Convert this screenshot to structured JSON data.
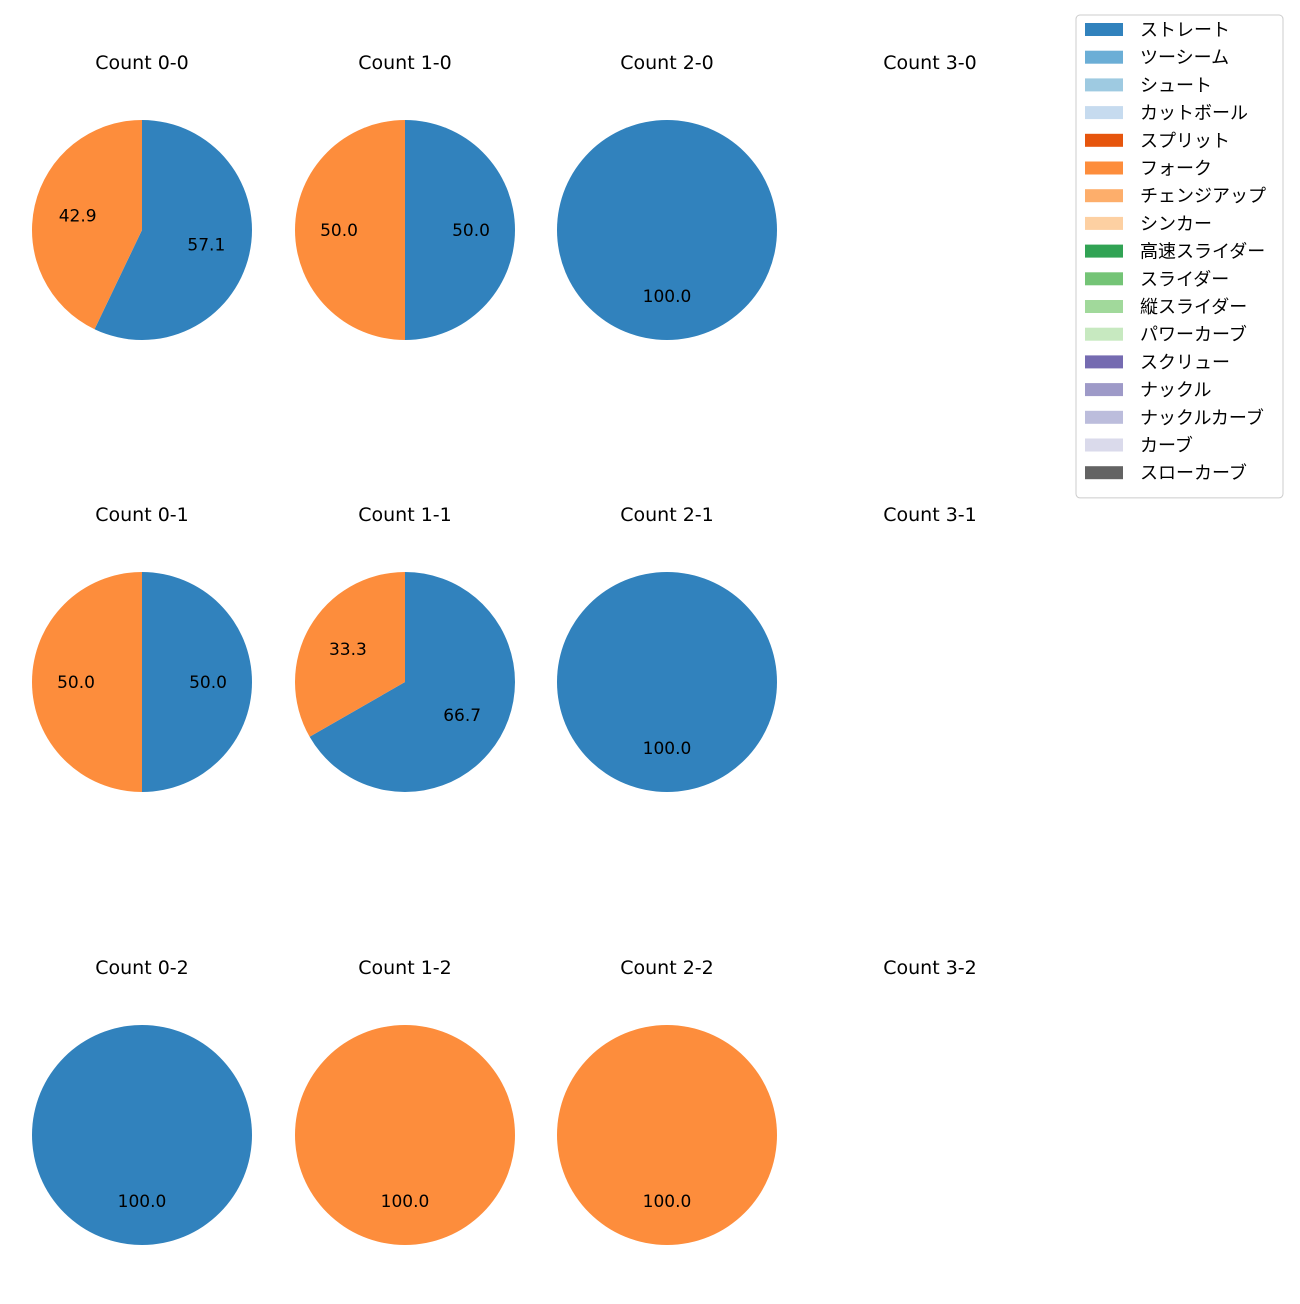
{
  "colors": {
    "ストレート": "#3182bd",
    "ツーシーム": "#6baed6",
    "シュート": "#9ecae1",
    "カットボール": "#c6dbef",
    "スプリット": "#e6550d",
    "フォーク": "#fd8d3c",
    "チェンジアップ": "#fdae6b",
    "シンカー": "#fdd0a2",
    "高速スライダー": "#31a354",
    "スライダー": "#74c476",
    "縦スライダー": "#a1d99b",
    "パワーカーブ": "#c7e9c0",
    "スクリュー": "#756bb1",
    "ナックル": "#9e9ac8",
    "ナックルカーブ": "#bcbddc",
    "カーブ": "#dadaeb",
    "スローカーブ": "#636363"
  },
  "chart_data": {
    "type": "pie",
    "legend_position": "top-right",
    "legend": [
      "ストレート",
      "ツーシーム",
      "シュート",
      "カットボール",
      "スプリット",
      "フォーク",
      "チェンジアップ",
      "シンカー",
      "高速スライダー",
      "スライダー",
      "縦スライダー",
      "パワーカーブ",
      "スクリュー",
      "ナックル",
      "ナックルカーブ",
      "カーブ",
      "スローカーブ"
    ],
    "pies": [
      {
        "title": "Count 0-0",
        "slices": [
          {
            "label": "ストレート",
            "value": 57.1
          },
          {
            "label": "フォーク",
            "value": 42.9
          }
        ]
      },
      {
        "title": "Count 1-0",
        "slices": [
          {
            "label": "ストレート",
            "value": 50.0
          },
          {
            "label": "フォーク",
            "value": 50.0
          }
        ]
      },
      {
        "title": "Count 2-0",
        "slices": [
          {
            "label": "ストレート",
            "value": 100.0
          }
        ]
      },
      {
        "title": "Count 3-0",
        "slices": []
      },
      {
        "title": "Count 0-1",
        "slices": [
          {
            "label": "ストレート",
            "value": 50.0
          },
          {
            "label": "フォーク",
            "value": 50.0
          }
        ]
      },
      {
        "title": "Count 1-1",
        "slices": [
          {
            "label": "ストレート",
            "value": 66.7
          },
          {
            "label": "フォーク",
            "value": 33.3
          }
        ]
      },
      {
        "title": "Count 2-1",
        "slices": [
          {
            "label": "ストレート",
            "value": 100.0
          }
        ]
      },
      {
        "title": "Count 3-1",
        "slices": []
      },
      {
        "title": "Count 0-2",
        "slices": [
          {
            "label": "ストレート",
            "value": 100.0
          }
        ]
      },
      {
        "title": "Count 1-2",
        "slices": [
          {
            "label": "フォーク",
            "value": 100.0
          }
        ]
      },
      {
        "title": "Count 2-2",
        "slices": [
          {
            "label": "フォーク",
            "value": 100.0
          }
        ]
      },
      {
        "title": "Count 3-2",
        "slices": []
      }
    ]
  }
}
